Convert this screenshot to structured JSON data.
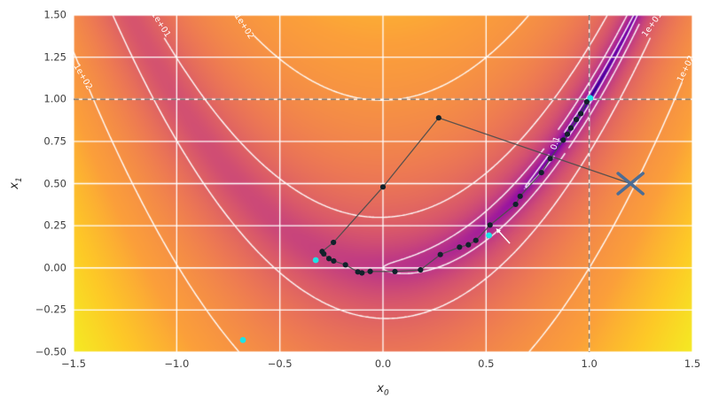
{
  "axes": {
    "xlabel": {
      "base": "x",
      "sub": "0"
    },
    "ylabel": {
      "base": "x",
      "sub": "1"
    },
    "xlim": [
      -1.5,
      1.5
    ],
    "ylim": [
      -0.5,
      1.5
    ],
    "x_ticks": [
      {
        "label": "−1.5",
        "value": -1.5
      },
      {
        "label": "−1.0",
        "value": -1.0
      },
      {
        "label": "−0.5",
        "value": -0.5
      },
      {
        "label": "0.0",
        "value": 0.0
      },
      {
        "label": "0.5",
        "value": 0.5
      },
      {
        "label": "1.0",
        "value": 1.0
      },
      {
        "label": "1.5",
        "value": 1.5
      }
    ],
    "y_ticks": [
      {
        "label": "1.50",
        "value": 1.5
      },
      {
        "label": "1.25",
        "value": 1.25
      },
      {
        "label": "1.00",
        "value": 1.0
      },
      {
        "label": "0.75",
        "value": 0.75
      },
      {
        "label": "0.50",
        "value": 0.5
      },
      {
        "label": "0.25",
        "value": 0.25
      },
      {
        "label": "0.00",
        "value": 0.0
      },
      {
        "label": "−0.25",
        "value": -0.25
      },
      {
        "label": "−0.50",
        "value": -0.5
      }
    ]
  },
  "chart_data": {
    "type": "heatmap",
    "title": "",
    "surface_function": "rosenbrock f(x0,x1) = (1 - x0)^2 + 100*(x1 - x0^2)^2",
    "colormap": "plasma",
    "color_scale": {
      "type": "log",
      "vmin": 0.001,
      "vmax": 1000
    },
    "grid": {
      "x_step": 0.5,
      "y_step": 0.25,
      "color": "#ffffff",
      "linewidth": 1.3
    },
    "contours": {
      "levels": [
        0.1,
        1,
        10,
        100
      ],
      "color": "#ffffff",
      "labels": [
        {
          "text": "1e+02",
          "x": -1.455,
          "y": 1.13,
          "rot": 60
        },
        {
          "text": "1e+01",
          "x": -1.08,
          "y": 1.442,
          "rot": 58
        },
        {
          "text": "1e+02",
          "x": -0.675,
          "y": 1.432,
          "rot": 57
        },
        {
          "text": "1e+01",
          "x": 1.307,
          "y": 1.442,
          "rot": -55
        },
        {
          "text": "1e+02",
          "x": 1.472,
          "y": 1.18,
          "rot": -64
        },
        {
          "text": "0.1",
          "x": 0.84,
          "y": 0.739,
          "rot": -73
        }
      ]
    },
    "optimum_crosshair": {
      "x": 1.0,
      "y": 1.0,
      "style": "dashed",
      "color": "#787878"
    },
    "start_point": {
      "x": 1.2,
      "y": 0.5,
      "marker": "x",
      "color": "#4d6d94"
    },
    "trajectory": {
      "line_color": "#4d4d4d",
      "point_color": "#11222b",
      "points": [
        [
          0.27,
          0.89
        ],
        [
          0.0,
          0.48
        ],
        [
          -0.24,
          0.151
        ],
        [
          -0.295,
          0.097
        ],
        [
          -0.287,
          0.083
        ],
        [
          -0.262,
          0.055
        ],
        [
          -0.239,
          0.041
        ],
        [
          -0.182,
          0.018
        ],
        [
          -0.122,
          -0.024
        ],
        [
          -0.102,
          -0.03
        ],
        [
          -0.062,
          -0.021
        ],
        [
          0.058,
          -0.022
        ],
        [
          0.182,
          -0.012
        ],
        [
          0.278,
          0.079
        ],
        [
          0.371,
          0.123
        ],
        [
          0.414,
          0.137
        ],
        [
          0.45,
          0.163
        ],
        [
          0.519,
          0.254
        ],
        [
          0.643,
          0.377
        ],
        [
          0.665,
          0.425
        ],
        [
          0.768,
          0.565
        ],
        [
          0.811,
          0.648
        ],
        [
          0.874,
          0.758
        ],
        [
          0.894,
          0.793
        ],
        [
          0.911,
          0.83
        ],
        [
          0.937,
          0.88
        ],
        [
          0.959,
          0.915
        ],
        [
          0.988,
          0.985
        ]
      ]
    },
    "sample_points": {
      "color": "#1ce3e6",
      "points": [
        [
          -0.679,
          -0.428
        ],
        [
          -0.326,
          0.046
        ],
        [
          0.514,
          0.193
        ],
        [
          1.005,
          1.008
        ]
      ]
    },
    "annotation_arrow": {
      "from": [
        0.615,
        0.145
      ],
      "to": [
        0.548,
        0.235
      ],
      "color": "#ffffff"
    }
  }
}
